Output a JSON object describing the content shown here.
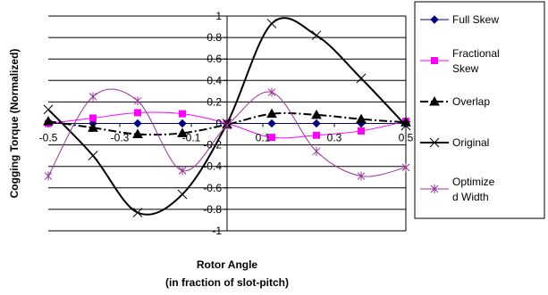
{
  "chart_data": {
    "type": "line",
    "title": "",
    "xlabel": [
      "Rotor Angle",
      "(in fraction of slot-pitch)"
    ],
    "ylabel": "Cogging Torque (Normalized)",
    "xlim": [
      -0.5,
      0.5
    ],
    "ylim": [
      -1,
      1
    ],
    "x_ticks": [
      "-0.5",
      "-0.3",
      "-0.1",
      "0.1",
      "0.3",
      "0.5"
    ],
    "x_tick_values": [
      -0.5,
      -0.3,
      -0.1,
      0.1,
      0.3,
      0.5
    ],
    "y_ticks": [
      "-1",
      "-0.8",
      "-0.6",
      "-0.4",
      "-0.2",
      "0",
      "0.2",
      "0.4",
      "0.6",
      "0.8",
      "1"
    ],
    "y_tick_values": [
      -1,
      -0.8,
      -0.6,
      -0.4,
      -0.2,
      0,
      0.2,
      0.4,
      0.6,
      0.8,
      1
    ],
    "grid": "horizontal",
    "legend_position": "right",
    "series": [
      {
        "name": "Full Skew",
        "color": "#000080",
        "marker": "diamond",
        "dash": "solid",
        "smooth": true,
        "x": [
          -0.5,
          -0.375,
          -0.25,
          -0.125,
          0.0,
          0.125,
          0.25,
          0.375,
          0.5
        ],
        "y": [
          0.0,
          0.0,
          0.0,
          0.0,
          0.0,
          0.0,
          0.0,
          0.0,
          0.0
        ]
      },
      {
        "name": "Fractional Skew",
        "color": "#ff00ff",
        "marker": "square",
        "dash": "solid",
        "smooth": true,
        "x": [
          -0.5,
          -0.375,
          -0.25,
          -0.125,
          0.0,
          0.125,
          0.25,
          0.375,
          0.5
        ],
        "y": [
          0.0,
          0.05,
          0.1,
          0.09,
          0.0,
          -0.13,
          -0.11,
          -0.07,
          0.02
        ]
      },
      {
        "name": "Overlap",
        "color": "#000000",
        "marker": "triangle",
        "dash": "dashdot",
        "smooth": true,
        "x": [
          -0.5,
          -0.375,
          -0.25,
          -0.125,
          0.0,
          0.125,
          0.25,
          0.375,
          0.5
        ],
        "y": [
          0.02,
          -0.04,
          -0.1,
          -0.09,
          -0.01,
          0.09,
          0.08,
          0.04,
          0.01
        ]
      },
      {
        "name": "Original",
        "color": "#000000",
        "marker": "x",
        "dash": "solid",
        "smooth": true,
        "x": [
          -0.5,
          -0.375,
          -0.25,
          -0.125,
          0.0,
          0.125,
          0.25,
          0.375,
          0.5
        ],
        "y": [
          0.13,
          -0.3,
          -0.83,
          -0.66,
          0.0,
          0.93,
          0.82,
          0.42,
          -0.02
        ]
      },
      {
        "name": "Optimized Width",
        "legend_lines": [
          "Optimize",
          "d Width"
        ],
        "color": "#993399",
        "marker": "star",
        "dash": "solid",
        "smooth": true,
        "x": [
          -0.5,
          -0.375,
          -0.25,
          -0.125,
          0.0,
          0.125,
          0.25,
          0.375,
          0.5
        ],
        "y": [
          -0.49,
          0.25,
          0.21,
          -0.44,
          -0.02,
          0.29,
          -0.26,
          -0.49,
          -0.41
        ]
      }
    ]
  }
}
